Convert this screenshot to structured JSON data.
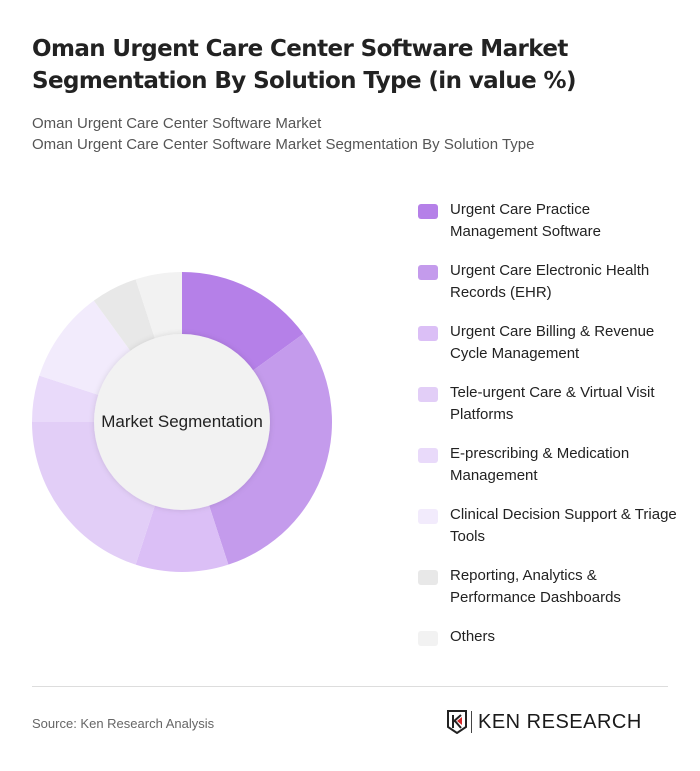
{
  "header": {
    "title": "Oman Urgent Care Center Software Market Segmentation By Solution Type (in value %)",
    "subtitle_line1": "Oman Urgent Care Center Software Market",
    "subtitle_line2": "Oman Urgent Care Center Software Market Segmentation By Solution Type"
  },
  "chart": {
    "center_label": "Market Segmentation"
  },
  "legend": [
    {
      "label": "Urgent Care Practice Management Software",
      "color": "#b580e8"
    },
    {
      "label": "Urgent Care Electronic Health Records (EHR)",
      "color": "#c49bec"
    },
    {
      "label": "Urgent Care Billing & Revenue Cycle Management",
      "color": "#dbbff6"
    },
    {
      "label": "Tele-urgent Care & Virtual Visit Platforms",
      "color": "#e2cef7"
    },
    {
      "label": "E-prescribing & Medication Management",
      "color": "#e9dafa"
    },
    {
      "label": "Clinical Decision Support & Triage Tools",
      "color": "#f2ebfc"
    },
    {
      "label": "Reporting, Analytics & Performance Dashboards",
      "color": "#e8e8e8"
    },
    {
      "label": "Others",
      "color": "#f2f2f2"
    }
  ],
  "footer": {
    "source": "Source: Ken Research Analysis",
    "logo_text": "KEN RESEARCH"
  },
  "chart_data": {
    "type": "pie",
    "donut": true,
    "title": "Oman Urgent Care Center Software Market Segmentation By Solution Type (in value %)",
    "center_label": "Market Segmentation",
    "categories": [
      "Urgent Care Practice Management Software",
      "Urgent Care Electronic Health Records (EHR)",
      "Urgent Care Billing & Revenue Cycle Management",
      "Tele-urgent Care & Virtual Visit Platforms",
      "E-prescribing & Medication Management",
      "Clinical Decision Support & Triage Tools",
      "Reporting, Analytics & Performance Dashboards",
      "Others"
    ],
    "values": [
      15,
      30,
      10,
      20,
      5,
      10,
      5,
      5
    ],
    "colors": [
      "#b580e8",
      "#c49bec",
      "#dbbff6",
      "#e2cef7",
      "#e9dafa",
      "#f2ebfc",
      "#e8e8e8",
      "#f2f2f2"
    ],
    "legend_position": "right",
    "unit": "%"
  }
}
